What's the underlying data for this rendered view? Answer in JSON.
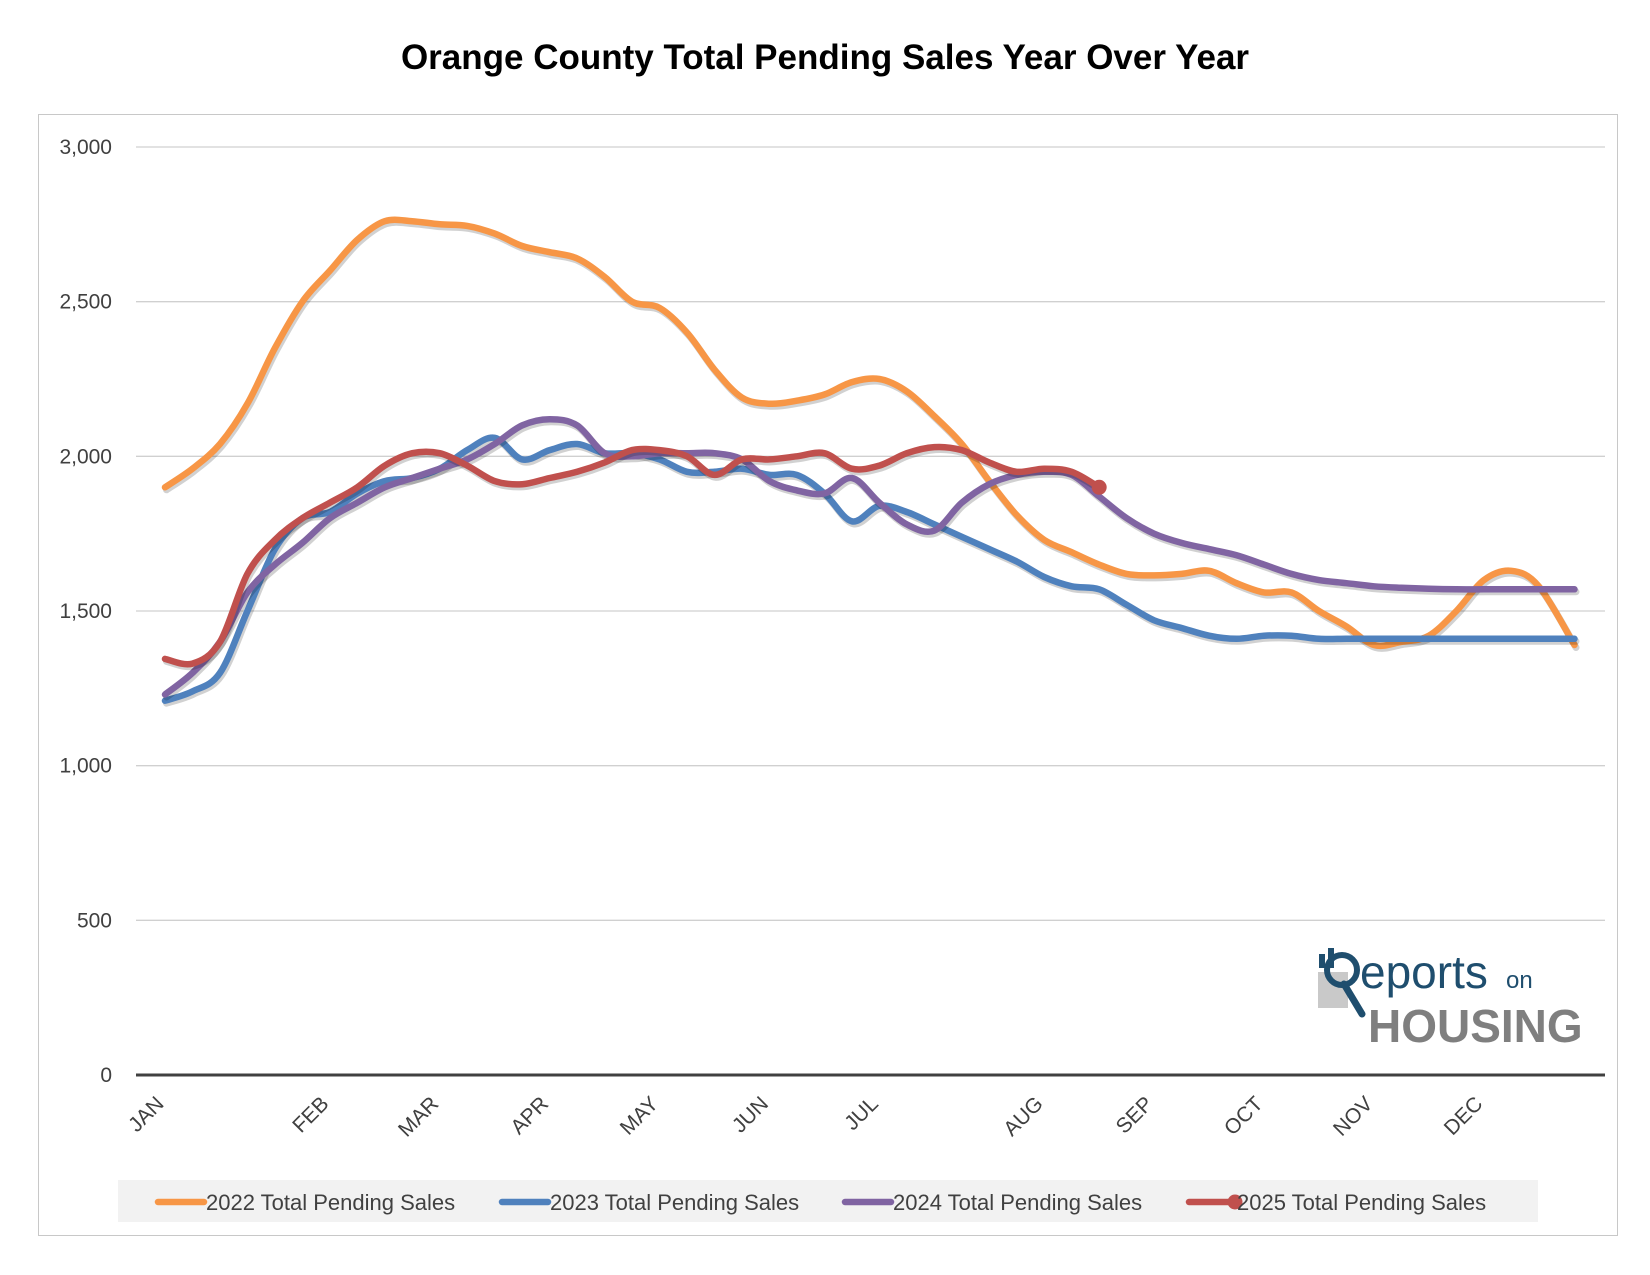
{
  "chart_data": {
    "type": "line",
    "title": "Orange County Total Pending Sales Year Over Year",
    "xlabel": "",
    "ylabel": "",
    "x_tick_labels": [
      "JAN",
      "FEB",
      "MAR",
      "APR",
      "MAY",
      "JUN",
      "JUL",
      "AUG",
      "SEP",
      "OCT",
      "NOV",
      "DEC"
    ],
    "y_tick_labels": [
      "0",
      "500",
      "1,000",
      "1,500",
      "2,000",
      "2,500",
      "3,000"
    ],
    "ylim": [
      0,
      3000
    ],
    "xlim": [
      1,
      52.5
    ],
    "grid": "horizontal",
    "legend_position": "bottom",
    "x_unit": "week of year",
    "month_positions": {
      "JAN": 1,
      "FEB": 7,
      "MAR": 11,
      "APR": 15,
      "MAY": 19,
      "JUN": 23,
      "JUL": 27,
      "AUG": 33,
      "SEP": 37,
      "OCT": 41,
      "NOV": 45,
      "DEC": 49
    },
    "series": [
      {
        "name": "2022 Total Pending Sales",
        "color": "#F79646",
        "end_marker": false,
        "points": [
          [
            1,
            1900
          ],
          [
            2,
            1960
          ],
          [
            3,
            2040
          ],
          [
            4,
            2170
          ],
          [
            5,
            2350
          ],
          [
            6,
            2500
          ],
          [
            7,
            2600
          ],
          [
            8,
            2700
          ],
          [
            9,
            2760
          ],
          [
            10,
            2760
          ],
          [
            11,
            2750
          ],
          [
            12,
            2745
          ],
          [
            13,
            2720
          ],
          [
            14,
            2680
          ],
          [
            15,
            2660
          ],
          [
            16,
            2640
          ],
          [
            17,
            2580
          ],
          [
            18,
            2500
          ],
          [
            19,
            2480
          ],
          [
            20,
            2400
          ],
          [
            21,
            2280
          ],
          [
            22,
            2190
          ],
          [
            23,
            2170
          ],
          [
            24,
            2180
          ],
          [
            25,
            2200
          ],
          [
            26,
            2240
          ],
          [
            27,
            2250
          ],
          [
            28,
            2210
          ],
          [
            29,
            2130
          ],
          [
            30,
            2040
          ],
          [
            31,
            1920
          ],
          [
            32,
            1810
          ],
          [
            33,
            1730
          ],
          [
            34,
            1690
          ],
          [
            35,
            1650
          ],
          [
            36,
            1620
          ],
          [
            37,
            1615
          ],
          [
            38,
            1620
          ],
          [
            39,
            1630
          ],
          [
            40,
            1590
          ],
          [
            41,
            1560
          ],
          [
            42,
            1560
          ],
          [
            43,
            1500
          ],
          [
            44,
            1450
          ],
          [
            45,
            1390
          ],
          [
            46,
            1400
          ],
          [
            47,
            1420
          ],
          [
            48,
            1500
          ],
          [
            49,
            1600
          ],
          [
            50,
            1630
          ],
          [
            51,
            1580
          ],
          [
            52.3,
            1390
          ]
        ]
      },
      {
        "name": "2023 Total Pending Sales",
        "color": "#4F81BD",
        "end_marker": false,
        "points": [
          [
            1,
            1210
          ],
          [
            2,
            1240
          ],
          [
            3,
            1300
          ],
          [
            4,
            1500
          ],
          [
            5,
            1700
          ],
          [
            6,
            1800
          ],
          [
            7,
            1820
          ],
          [
            8,
            1880
          ],
          [
            9,
            1920
          ],
          [
            10,
            1930
          ],
          [
            11,
            1960
          ],
          [
            12,
            2020
          ],
          [
            13,
            2060
          ],
          [
            14,
            1990
          ],
          [
            15,
            2020
          ],
          [
            16,
            2040
          ],
          [
            17,
            2010
          ],
          [
            18,
            2010
          ],
          [
            19,
            1990
          ],
          [
            20,
            1950
          ],
          [
            21,
            1950
          ],
          [
            22,
            1960
          ],
          [
            23,
            1940
          ],
          [
            24,
            1940
          ],
          [
            25,
            1880
          ],
          [
            26,
            1790
          ],
          [
            27,
            1840
          ],
          [
            28,
            1820
          ],
          [
            29,
            1780
          ],
          [
            30,
            1740
          ],
          [
            31,
            1700
          ],
          [
            32,
            1660
          ],
          [
            33,
            1610
          ],
          [
            34,
            1580
          ],
          [
            35,
            1570
          ],
          [
            36,
            1520
          ],
          [
            37,
            1470
          ],
          [
            38,
            1445
          ],
          [
            39,
            1420
          ],
          [
            40,
            1410
          ],
          [
            41,
            1420
          ],
          [
            42,
            1420
          ],
          [
            43,
            1410
          ],
          [
            44,
            1410
          ],
          [
            45,
            1410
          ],
          [
            46,
            1410
          ],
          [
            47,
            1410
          ],
          [
            48,
            1410
          ],
          [
            49,
            1410
          ],
          [
            50,
            1410
          ],
          [
            51,
            1410
          ],
          [
            52.3,
            1410
          ]
        ]
      },
      {
        "name": "2024 Total Pending Sales",
        "color": "#8064A2",
        "end_marker": false,
        "points": [
          [
            1,
            1230
          ],
          [
            2,
            1300
          ],
          [
            3,
            1400
          ],
          [
            4,
            1560
          ],
          [
            5,
            1650
          ],
          [
            6,
            1720
          ],
          [
            7,
            1800
          ],
          [
            8,
            1850
          ],
          [
            9,
            1900
          ],
          [
            10,
            1930
          ],
          [
            11,
            1960
          ],
          [
            12,
            1990
          ],
          [
            13,
            2040
          ],
          [
            14,
            2100
          ],
          [
            15,
            2120
          ],
          [
            16,
            2100
          ],
          [
            17,
            2010
          ],
          [
            18,
            2000
          ],
          [
            19,
            2010
          ],
          [
            20,
            2010
          ],
          [
            21,
            2010
          ],
          [
            22,
            1990
          ],
          [
            23,
            1920
          ],
          [
            24,
            1890
          ],
          [
            25,
            1880
          ],
          [
            26,
            1930
          ],
          [
            27,
            1850
          ],
          [
            28,
            1780
          ],
          [
            29,
            1760
          ],
          [
            30,
            1850
          ],
          [
            31,
            1910
          ],
          [
            32,
            1940
          ],
          [
            33,
            1950
          ],
          [
            34,
            1940
          ],
          [
            35,
            1870
          ],
          [
            36,
            1800
          ],
          [
            37,
            1750
          ],
          [
            38,
            1720
          ],
          [
            39,
            1700
          ],
          [
            40,
            1680
          ],
          [
            41,
            1650
          ],
          [
            42,
            1620
          ],
          [
            43,
            1600
          ],
          [
            44,
            1590
          ],
          [
            45,
            1580
          ],
          [
            46,
            1575
          ],
          [
            47,
            1572
          ],
          [
            48,
            1570
          ],
          [
            49,
            1570
          ],
          [
            50,
            1570
          ],
          [
            51,
            1570
          ],
          [
            52.3,
            1570
          ]
        ]
      },
      {
        "name": "2025 Total Pending Sales",
        "color": "#C0504D",
        "end_marker": true,
        "points": [
          [
            1,
            1345
          ],
          [
            2,
            1330
          ],
          [
            3,
            1400
          ],
          [
            4,
            1620
          ],
          [
            5,
            1730
          ],
          [
            6,
            1800
          ],
          [
            7,
            1850
          ],
          [
            8,
            1900
          ],
          [
            9,
            1970
          ],
          [
            10,
            2010
          ],
          [
            11,
            2010
          ],
          [
            12,
            1970
          ],
          [
            13,
            1920
          ],
          [
            14,
            1910
          ],
          [
            15,
            1930
          ],
          [
            16,
            1950
          ],
          [
            17,
            1980
          ],
          [
            18,
            2020
          ],
          [
            19,
            2020
          ],
          [
            20,
            2000
          ],
          [
            21,
            1940
          ],
          [
            22,
            1990
          ],
          [
            23,
            1990
          ],
          [
            24,
            2000
          ],
          [
            25,
            2010
          ],
          [
            26,
            1960
          ],
          [
            27,
            1970
          ],
          [
            28,
            2010
          ],
          [
            29,
            2030
          ],
          [
            30,
            2020
          ],
          [
            31,
            1980
          ],
          [
            32,
            1950
          ],
          [
            33,
            1960
          ],
          [
            34,
            1950
          ],
          [
            35,
            1900
          ]
        ]
      }
    ]
  },
  "logo": {
    "text_primary": "eports",
    "text_secondary": "on",
    "text_bottom": "HOUSING",
    "initial": "R",
    "color_dark": "#1f4e6e",
    "color_gray": "#7f7f7f"
  }
}
